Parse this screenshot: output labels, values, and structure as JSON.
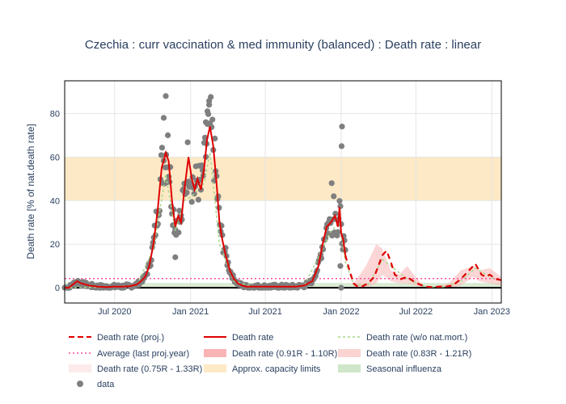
{
  "chart_data": {
    "type": "line",
    "title": "Czechia : curr vaccination & med immunity (balanced) : Death rate : linear",
    "xlabel": "",
    "ylabel": "Death rate [% of nat.death rate]",
    "x_ticks": [
      "Jul 2020",
      "Jan 2021",
      "Jul 2021",
      "Jan 2022",
      "Jul 2022",
      "Jan 2023"
    ],
    "x_tick_days": [
      121,
      305,
      486,
      670,
      851,
      1035
    ],
    "x_range_days": [
      0,
      1058
    ],
    "x_start_date": "2020-03-01",
    "y_ticks": [
      0,
      20,
      40,
      60,
      80
    ],
    "ylim": [
      -7,
      95
    ],
    "grid": true,
    "legend_position": "bottom",
    "capacity_band": [
      40,
      60
    ],
    "average_last_proj_year": 4.2,
    "legend": [
      "Death rate (proj.)",
      "Death rate",
      "Death rate (w/o nat.mort.)",
      "Average (last proj.year)",
      "Death rate (0.91R - 1.10R)",
      "Death rate (0.83R - 1.21R)",
      "Death rate (0.75R - 1.33R)",
      "Approx. capacity limits",
      "Seasonal influenza",
      "data"
    ],
    "series": [
      {
        "name": "Death rate",
        "x": [
          0,
          10,
          20,
          30,
          40,
          50,
          60,
          80,
          100,
          120,
          140,
          160,
          175,
          185,
          195,
          205,
          215,
          225,
          235,
          245,
          252,
          260,
          268,
          275,
          282,
          290,
          300,
          308,
          315,
          322,
          330,
          338,
          345,
          352,
          360,
          368,
          375,
          382,
          390,
          400,
          410,
          420,
          430,
          440,
          450,
          460,
          470,
          480,
          490,
          500,
          510,
          520,
          540,
          560,
          580,
          600,
          615,
          625,
          635,
          645,
          655,
          662,
          666,
          670,
          675,
          680
        ],
        "y": [
          0,
          0,
          1.5,
          3,
          2,
          1.5,
          1,
          0.5,
          0.3,
          0.5,
          0.5,
          0.8,
          1.5,
          3,
          5,
          10,
          20,
          35,
          55,
          62,
          58,
          40,
          28,
          33,
          30,
          45,
          60,
          50,
          45,
          50,
          45,
          55,
          68,
          74,
          65,
          48,
          30,
          22,
          15,
          8,
          4,
          2,
          1,
          0.5,
          0.5,
          0.5,
          0.5,
          0.5,
          0.5,
          0.5,
          0.5,
          0.5,
          0.5,
          0.5,
          1,
          3,
          10,
          20,
          28,
          30,
          33,
          28,
          37,
          25,
          22,
          15
        ]
      },
      {
        "name": "Death rate (proj.)",
        "x": [
          680,
          690,
          700,
          710,
          720,
          735,
          750,
          760,
          770,
          780,
          790,
          800,
          815,
          830,
          845,
          860,
          875,
          890,
          905,
          920,
          940,
          960,
          980,
          995,
          1010,
          1020,
          1030,
          1045,
          1058
        ],
        "y": [
          15,
          8,
          2,
          0.5,
          0.5,
          2,
          5,
          10,
          15,
          17,
          12,
          6,
          4,
          5,
          3,
          1.5,
          0.5,
          0.3,
          0.5,
          0.5,
          1,
          4,
          8,
          11,
          6,
          5,
          6,
          4,
          3.5
        ]
      },
      {
        "name": "Death rate (w/o nat.mort.)",
        "x": [
          0,
          120,
          175,
          215,
          245,
          268,
          290,
          308,
          338,
          352,
          375,
          410,
          460,
          580,
          625,
          645,
          666,
          680,
          700,
          735,
          770,
          790,
          830,
          875,
          920,
          960,
          995,
          1030,
          1058
        ],
        "y": [
          0,
          0.4,
          1.2,
          18,
          52,
          26,
          40,
          42,
          48,
          62,
          20,
          3,
          0.4,
          0.8,
          18,
          26,
          30,
          12,
          1.5,
          1.5,
          13,
          10,
          4,
          0.4,
          0.4,
          3,
          9,
          5,
          3
        ]
      }
    ],
    "projection_bands": [
      {
        "name": "Death rate (0.91R - 1.10R)",
        "x": [
          700,
          730,
          755,
          770,
          790,
          810,
          830,
          850,
          870,
          895,
          930,
          960,
          975,
          990,
          1005,
          1030,
          1058
        ],
        "upper": [
          2,
          10,
          20,
          18,
          8,
          6,
          10,
          5,
          1,
          0.5,
          2,
          8,
          9,
          10,
          8,
          9,
          5
        ],
        "lower": [
          0,
          0,
          2,
          6,
          3,
          2,
          2,
          1,
          0,
          0,
          0,
          1,
          3,
          5,
          3,
          2,
          1
        ]
      }
    ],
    "data_points_sample": [
      {
        "x": 240,
        "y": 78
      },
      {
        "x": 245,
        "y": 88
      },
      {
        "x": 250,
        "y": 70
      },
      {
        "x": 350,
        "y": 84
      },
      {
        "x": 346,
        "y": 81
      },
      {
        "x": 342,
        "y": 76
      },
      {
        "x": 672,
        "y": 74
      },
      {
        "x": 671,
        "y": 65
      },
      {
        "x": 668,
        "y": 10
      },
      {
        "x": 670,
        "y": 0
      },
      {
        "x": 647,
        "y": 48
      },
      {
        "x": 652,
        "y": 42
      },
      {
        "x": 268,
        "y": 14
      }
    ]
  }
}
